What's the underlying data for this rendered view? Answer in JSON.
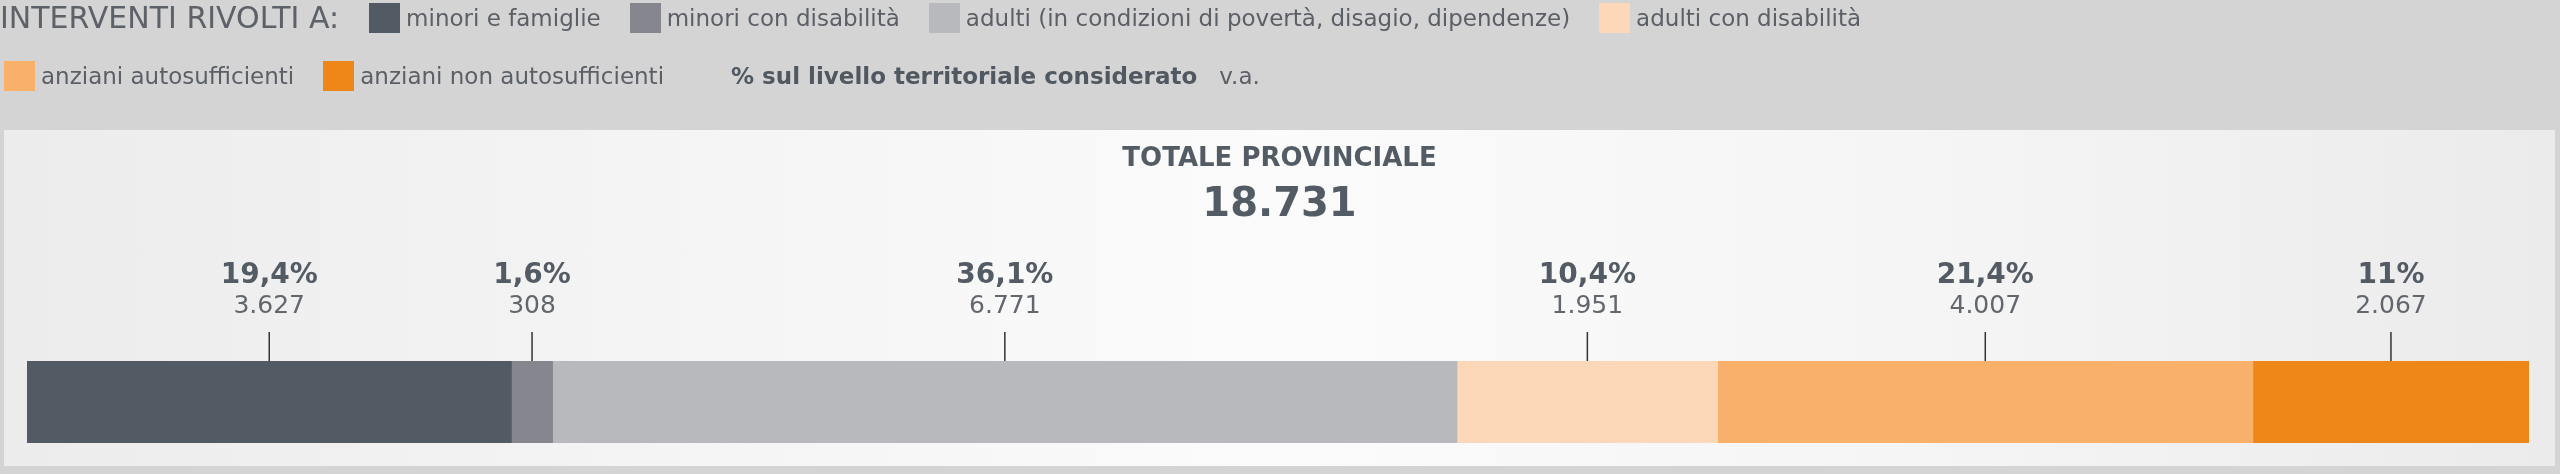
{
  "chart_data": {
    "type": "bar",
    "orientation": "horizontal",
    "stacked": true,
    "title": "TOTALE PROVINCIALE",
    "subtitle": "18.731",
    "legend_title": "INTERVENTI RIVOLTI A:",
    "legend": "top left",
    "tick_labels": false,
    "categories": [
      null
    ],
    "series": [
      {
        "name": "minori e famiglie",
        "color": "#525a64",
        "values": [
          3627
        ],
        "value_labels": [
          "19,4%\n3.627"
        ]
      },
      {
        "name": "minori con disabilità",
        "color": "#85868e",
        "values": [
          308
        ],
        "value_labels": [
          "1,6%\n308"
        ]
      },
      {
        "name": "adulti (in condizioni di povertà, disagio, dipendenze)",
        "color": "#b8b9bc",
        "values": [
          6771
        ],
        "value_labels": [
          "36,1%\n6.771"
        ]
      },
      {
        "name": "adulti con disabilità",
        "color": "#fcd8b8",
        "values": [
          1951
        ],
        "value_labels": [
          "10,4%\n1.951"
        ]
      },
      {
        "name": "anziani autosufficienti",
        "color": "#f8b06a",
        "values": [
          4007
        ],
        "value_labels": [
          "21,4%\n4.007"
        ]
      },
      {
        "name": "anziani non autosufficienti",
        "color": "#ee8618",
        "values": [
          2067
        ],
        "value_labels": [
          "11%\n2.067"
        ]
      }
    ],
    "annotations": [
      "% sul livello territoriale considerato",
      "v.a."
    ]
  }
}
